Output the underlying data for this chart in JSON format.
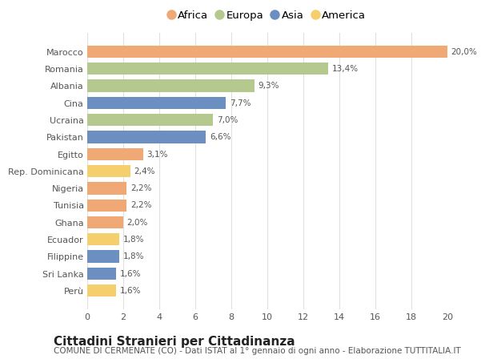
{
  "countries": [
    "Marocco",
    "Romania",
    "Albania",
    "Cina",
    "Ucraina",
    "Pakistan",
    "Egitto",
    "Rep. Dominicana",
    "Nigeria",
    "Tunisia",
    "Ghana",
    "Ecuador",
    "Filippine",
    "Sri Lanka",
    "Perù"
  ],
  "values": [
    20.0,
    13.4,
    9.3,
    7.7,
    7.0,
    6.6,
    3.1,
    2.4,
    2.2,
    2.2,
    2.0,
    1.8,
    1.8,
    1.6,
    1.6
  ],
  "labels": [
    "20,0%",
    "13,4%",
    "9,3%",
    "7,7%",
    "7,0%",
    "6,6%",
    "3,1%",
    "2,4%",
    "2,2%",
    "2,2%",
    "2,0%",
    "1,8%",
    "1,8%",
    "1,6%",
    "1,6%"
  ],
  "continents": [
    "Africa",
    "Europa",
    "Europa",
    "Asia",
    "Europa",
    "Asia",
    "Africa",
    "America",
    "Africa",
    "Africa",
    "Africa",
    "America",
    "Asia",
    "Asia",
    "America"
  ],
  "colors": {
    "Africa": "#F0A875",
    "Europa": "#B5C98E",
    "Asia": "#6B8FC0",
    "America": "#F5CE6E"
  },
  "legend_order": [
    "Africa",
    "Europa",
    "Asia",
    "America"
  ],
  "legend_colors": [
    "#F0A875",
    "#B5C98E",
    "#6B8FC0",
    "#F5CE6E"
  ],
  "title": "Cittadini Stranieri per Cittadinanza",
  "subtitle": "COMUNE DI CERMENATE (CO) - Dati ISTAT al 1° gennaio di ogni anno - Elaborazione TUTTITALIA.IT",
  "xlim": [
    0,
    20
  ],
  "xticks": [
    0,
    2,
    4,
    6,
    8,
    10,
    12,
    14,
    16,
    18,
    20
  ],
  "background_color": "#ffffff",
  "grid_color": "#e0e0e0",
  "bar_height": 0.72,
  "title_fontsize": 11,
  "subtitle_fontsize": 7.5,
  "label_fontsize": 7.5,
  "tick_fontsize": 8,
  "legend_fontsize": 9.5
}
